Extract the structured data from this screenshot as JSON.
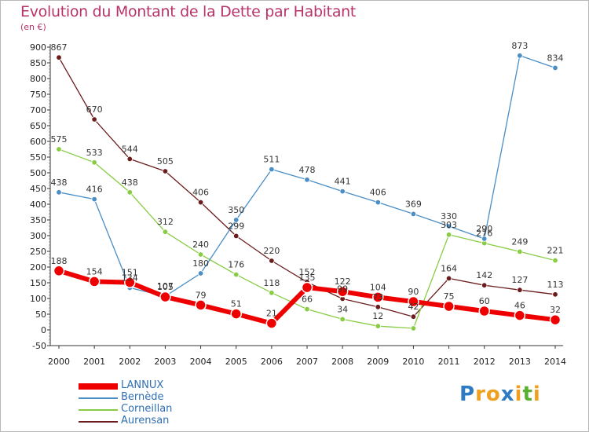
{
  "title": "Evolution du Montant de la Dette par Habitant",
  "subtitle": "(en €)",
  "brand": {
    "letters": [
      "P",
      "r",
      "o",
      "x",
      "i",
      "t",
      "i"
    ],
    "colors": [
      "#2e7bc4",
      "#f0a020",
      "#f0a020",
      "#2e7bc4",
      "#f0a020",
      "#5ab030",
      "#f0a020"
    ]
  },
  "chart_data": {
    "type": "line",
    "title": "Evolution du Montant de la Dette par Habitant",
    "subtitle": "(en €)",
    "xlabel": "",
    "ylabel": "",
    "x": [
      "2000",
      "2001",
      "2002",
      "2003",
      "2004",
      "2005",
      "2006",
      "2007",
      "2008",
      "2009",
      "2010",
      "2011",
      "2012",
      "2013",
      "2014"
    ],
    "ylim": [
      -50,
      900
    ],
    "yticks": [
      -50,
      0,
      50,
      100,
      150,
      200,
      250,
      300,
      350,
      400,
      450,
      500,
      550,
      600,
      650,
      700,
      750,
      800,
      850,
      900
    ],
    "grid": false,
    "legend_position": "bottom-left",
    "series": [
      {
        "name": "LANNUX",
        "color": "#ee0000",
        "values": [
          188,
          154,
          151,
          105,
          79,
          51,
          21,
          135,
          122,
          104,
          90,
          75,
          60,
          46,
          32
        ]
      },
      {
        "name": "Bernède",
        "color": "#4a8ec6",
        "values": [
          438,
          416,
          134,
          107,
          180,
          350,
          511,
          478,
          441,
          406,
          369,
          330,
          290,
          873,
          834
        ]
      },
      {
        "name": "Corneillan",
        "color": "#88cc44",
        "values": [
          575,
          533,
          438,
          312,
          240,
          176,
          118,
          66,
          34,
          12,
          5,
          303,
          276,
          249,
          221
        ]
      },
      {
        "name": "Aurensan",
        "color": "#6b1c1c",
        "values": [
          867,
          670,
          544,
          505,
          406,
          299,
          220,
          152,
          99,
          73,
          42,
          164,
          142,
          127,
          113
        ]
      }
    ],
    "point_labels": [
      [
        "188",
        "154",
        "151",
        "105",
        "79",
        "51",
        "21",
        "135",
        "122",
        "104",
        "90",
        "75",
        "60",
        "46",
        "32"
      ],
      [
        "438",
        "416",
        "134",
        "107",
        "180",
        "350",
        "511",
        "478",
        "441",
        "406",
        "369",
        "330",
        "290",
        "873",
        "834"
      ],
      [
        "575",
        "533",
        "438",
        "312",
        "240",
        "176",
        "118",
        "66",
        "34",
        "12",
        "",
        "303",
        "276",
        "249",
        "221"
      ],
      [
        "867",
        "670",
        "544",
        "505",
        "406",
        "299",
        "220",
        "152",
        "99",
        "73",
        "42",
        "164",
        "142",
        "127",
        "113"
      ]
    ]
  }
}
